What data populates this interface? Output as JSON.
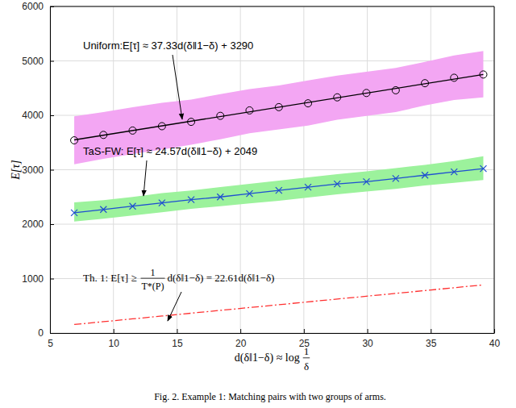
{
  "chart_data": {
    "type": "line",
    "caption": "Fig. 2.  Example 1: Matching pairs with two groups of arms.",
    "x_label": {
      "text": "d(δ‖1−δ) ≈ log",
      "numerator": "1",
      "denominator": "δ"
    },
    "y_label": "E[τ]",
    "xlim": [
      5,
      40
    ],
    "xticks": [
      5,
      10,
      15,
      20,
      25,
      30,
      35,
      40
    ],
    "ylim": [
      0,
      6000
    ],
    "yticks": [
      0,
      1000,
      2000,
      3000,
      4000,
      5000,
      6000
    ],
    "grid": true,
    "x": [
      6.91,
      9.21,
      11.51,
      13.82,
      16.12,
      18.42,
      20.72,
      23.03,
      25.33,
      27.63,
      29.93,
      32.24,
      34.54,
      36.84,
      39.14
    ],
    "series": [
      {
        "type": "band",
        "color": "#f3a6f3",
        "lower": [
          3100,
          3200,
          3290,
          3370,
          3460,
          3560,
          3670,
          3740,
          3810,
          3920,
          3990,
          4060,
          4180,
          4280,
          4330
        ],
        "upper": [
          3980,
          4060,
          4150,
          4230,
          4290,
          4390,
          4480,
          4550,
          4640,
          4730,
          4800,
          4870,
          4980,
          5100,
          5180
        ]
      },
      {
        "type": "band",
        "color": "#9cf29c",
        "lower": [
          2050,
          2100,
          2160,
          2220,
          2280,
          2330,
          2380,
          2430,
          2490,
          2550,
          2600,
          2650,
          2710,
          2760,
          2810
        ],
        "upper": [
          2400,
          2440,
          2500,
          2570,
          2620,
          2680,
          2740,
          2800,
          2860,
          2920,
          2970,
          3030,
          3090,
          3160,
          3250
        ]
      },
      {
        "type": "scatter",
        "marker": "circle",
        "color": "#000000",
        "values": [
          3540,
          3640,
          3720,
          3800,
          3880,
          3990,
          4090,
          4150,
          4220,
          4330,
          4410,
          4460,
          4590,
          4690,
          4750
        ]
      },
      {
        "type": "line",
        "color": "#000000",
        "line_style": "solid",
        "x": [
          6.91,
          39.14
        ],
        "values": [
          3548,
          4751
        ]
      },
      {
        "type": "line",
        "marker": "x",
        "color": "#1f4fd0",
        "line_style": "solid",
        "values": [
          2210,
          2270,
          2330,
          2390,
          2450,
          2500,
          2560,
          2620,
          2680,
          2740,
          2780,
          2840,
          2900,
          2960,
          3020
        ]
      },
      {
        "type": "line",
        "color": "#ff3030",
        "line_style": "dashdot",
        "values": [
          156,
          208,
          260,
          312,
          364,
          416,
          468,
          520,
          572,
          624,
          676,
          728,
          780,
          832,
          885
        ]
      }
    ],
    "annotations": [
      {
        "text": "Uniform:E[τ] ≈ 37.33d(δ‖1−δ) + 3290"
      },
      {
        "text": "TaS-FW: E[τ] ≈ 24.57d(δ‖1−δ) + 2049"
      },
      {
        "text": "Th. 1: E[τ] ≥",
        "numerator": "1",
        "denominator": "T*(P)",
        "suffix": "d(δ‖1−δ) = 22.61d(δ‖1−δ)"
      }
    ]
  }
}
